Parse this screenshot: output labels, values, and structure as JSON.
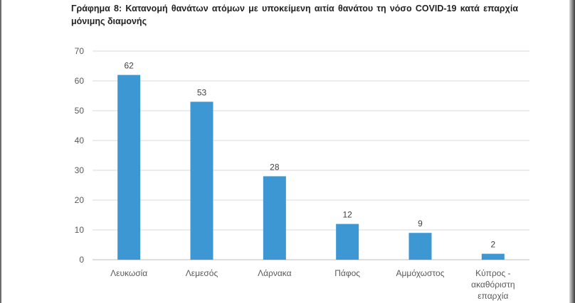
{
  "chart_data": {
    "type": "bar",
    "title": "Γράφημα 8: Κατανομή θανάτων ατόμων με υποκείμενη αιτία θανάτου τη νόσο COVID-19 κατά επαρχία μόνιμης διαμονής",
    "categories": [
      [
        "Λευκωσία"
      ],
      [
        "Λεμεσός"
      ],
      [
        "Λάρνακα"
      ],
      [
        "Πάφος"
      ],
      [
        "Αμμόχωστος"
      ],
      [
        "Κύπρος -",
        "ακαθόριστη",
        "επαρχία"
      ]
    ],
    "values": [
      62,
      53,
      28,
      12,
      9,
      2
    ],
    "ylim": [
      0,
      70
    ],
    "yticks": [
      0,
      10,
      20,
      30,
      40,
      50,
      60,
      70
    ],
    "grid": true,
    "bar_color": "#3d97d3",
    "grid_color": "#d9d9d9"
  }
}
